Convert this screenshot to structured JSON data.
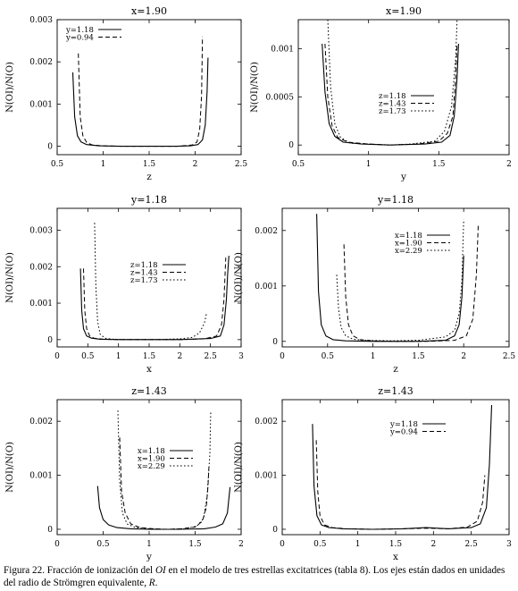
{
  "caption": {
    "before_oi": "Figura 22. Fracción de ionización del ",
    "oi": "OI",
    "middle": " en el modelo de tres estrellas excitatrices (tabla 8). Los ejes están dados en unidades del radio de Strömgren equivalente, ",
    "r": "R",
    "end": "."
  },
  "chart_data": [
    {
      "type": "line",
      "title": "x=1.90",
      "xlabel": "z",
      "ylabel": "N(OI)/N(O)",
      "xlim": [
        0.5,
        2.5
      ],
      "ylim": [
        -0.0002,
        0.003
      ],
      "xticks": [
        0.5,
        1,
        1.5,
        2,
        2.5
      ],
      "xtick_labels": [
        "0.5",
        "1",
        "1.5",
        "2",
        "2.5"
      ],
      "yticks": [
        0,
        0.001,
        0.002,
        0.003
      ],
      "ytick_labels": [
        "0",
        "0.001",
        "0.002",
        "0.003"
      ],
      "legend_position": "top-left",
      "series": [
        {
          "name": "y=1.18",
          "style": "solid",
          "x": [
            0.67,
            0.69,
            0.72,
            0.76,
            0.82,
            0.95,
            1.2,
            1.5,
            1.8,
            1.95,
            2.03,
            2.08,
            2.11,
            2.13,
            2.14
          ],
          "y": [
            0.00175,
            0.0007,
            0.00025,
            0.0001,
            4e-05,
            1e-05,
            0.0,
            0.0,
            0.0,
            1e-05,
            4e-05,
            0.00015,
            0.0005,
            0.0013,
            0.0021
          ]
        },
        {
          "name": "y=0.94",
          "style": "dashed",
          "x": [
            0.73,
            0.75,
            0.78,
            0.82,
            0.88,
            1.0,
            1.2,
            1.5,
            1.8,
            1.97,
            2.02,
            2.05,
            2.07,
            2.08
          ],
          "y": [
            0.0022,
            0.0007,
            0.00025,
            9e-05,
            3e-05,
            1e-05,
            0.0,
            0.0,
            0.0,
            3e-05,
            0.0001,
            0.0004,
            0.0012,
            0.0026
          ]
        }
      ]
    },
    {
      "type": "line",
      "title": "x=1.90",
      "xlabel": "y",
      "ylabel": "N(OI)/N(O)",
      "xlim": [
        0.5,
        2.0
      ],
      "ylim": [
        -0.0001,
        0.0013
      ],
      "xticks": [
        0.5,
        1,
        1.5,
        2
      ],
      "xtick_labels": [
        "0.5",
        "1",
        "1.5",
        "2"
      ],
      "yticks": [
        0,
        0.0005,
        0.001
      ],
      "ytick_labels": [
        "0",
        "0.0005",
        "0.001"
      ],
      "legend_position": "center",
      "series": [
        {
          "name": "z=1.18",
          "style": "solid",
          "x": [
            0.67,
            0.69,
            0.72,
            0.76,
            0.82,
            0.95,
            1.15,
            1.4,
            1.52,
            1.58,
            1.61,
            1.63,
            1.64
          ],
          "y": [
            0.00105,
            0.00055,
            0.00022,
            9e-05,
            3e-05,
            1e-05,
            0.0,
            1e-05,
            3e-05,
            0.0001,
            0.0003,
            0.0007,
            0.00105
          ]
        },
        {
          "name": "z=1.43",
          "style": "dashed",
          "x": [
            0.69,
            0.71,
            0.74,
            0.78,
            0.85,
            1.0,
            1.15,
            1.35,
            1.5,
            1.56,
            1.6,
            1.62,
            1.63
          ],
          "y": [
            0.00105,
            0.0005,
            0.0002,
            8e-05,
            3e-05,
            1e-05,
            0.0,
            1e-05,
            4e-05,
            0.00012,
            0.0003,
            0.0007,
            0.00105
          ]
        },
        {
          "name": "z=1.73",
          "style": "dotted",
          "x": [
            0.71,
            0.73,
            0.76,
            0.8,
            0.87,
            1.0,
            1.15,
            1.3,
            1.47,
            1.54,
            1.59,
            1.62,
            1.63
          ],
          "y": [
            0.0013,
            0.0006,
            0.00022,
            8e-05,
            2e-05,
            1e-05,
            0.0,
            1e-05,
            4e-05,
            0.00014,
            0.0004,
            0.0009,
            0.0013
          ]
        }
      ]
    },
    {
      "type": "line",
      "title": "y=1.18",
      "xlabel": "x",
      "ylabel": "N(OI)/N(O)",
      "xlim": [
        0,
        3
      ],
      "ylim": [
        -0.0002,
        0.0036
      ],
      "xticks": [
        0,
        0.5,
        1,
        1.5,
        2,
        2.5,
        3
      ],
      "xtick_labels": [
        "0",
        "0.5",
        "1",
        "1.5",
        "2",
        "2.5",
        "3"
      ],
      "yticks": [
        0,
        0.001,
        0.002,
        0.003
      ],
      "ytick_labels": [
        "0",
        "0.001",
        "0.002",
        "0.003"
      ],
      "legend_position": "center",
      "series": [
        {
          "name": "z=1.18",
          "style": "solid",
          "x": [
            0.38,
            0.4,
            0.43,
            0.48,
            0.56,
            0.7,
            1.0,
            1.5,
            2.0,
            2.5,
            2.66,
            2.72,
            2.76,
            2.78,
            2.8
          ],
          "y": [
            0.00195,
            0.0008,
            0.0003,
            0.0001,
            4e-05,
            1e-05,
            0.0,
            0.0,
            0.0,
            3e-05,
            0.0001,
            0.0004,
            0.0011,
            0.0018,
            0.0023
          ]
        },
        {
          "name": "z=1.43",
          "style": "dashed",
          "x": [
            0.43,
            0.45,
            0.48,
            0.53,
            0.6,
            0.75,
            1.0,
            1.5,
            2.0,
            2.4,
            2.6,
            2.68,
            2.72,
            2.75
          ],
          "y": [
            0.00195,
            0.0008,
            0.0003,
            0.0001,
            4e-05,
            1e-05,
            0.0,
            0.0,
            0.0,
            2e-05,
            0.0001,
            0.0004,
            0.0011,
            0.00225
          ]
        },
        {
          "name": "z=1.73",
          "style": "dotted",
          "x": [
            0.61,
            0.63,
            0.66,
            0.7,
            0.78,
            0.9,
            1.2,
            1.6,
            2.0,
            2.2,
            2.32,
            2.4,
            2.44
          ],
          "y": [
            0.0032,
            0.0015,
            0.0005,
            0.00015,
            4e-05,
            1e-05,
            0.0,
            0.0,
            2e-05,
            6e-05,
            0.00018,
            0.00045,
            0.00075
          ]
        }
      ]
    },
    {
      "type": "line",
      "title": "y=1.18",
      "xlabel": "z",
      "ylabel": "N(OI)/N(O)",
      "xlim": [
        0,
        2.5
      ],
      "ylim": [
        -0.0001,
        0.0024
      ],
      "xticks": [
        0,
        0.5,
        1,
        1.5,
        2,
        2.5
      ],
      "xtick_labels": [
        "0",
        "0.5",
        "1",
        "1.5",
        "2",
        "2.5"
      ],
      "yticks": [
        0,
        0.001,
        0.002
      ],
      "ytick_labels": [
        "0",
        "0.001",
        "0.002"
      ],
      "legend_position": "top-center",
      "series": [
        {
          "name": "x=1.18",
          "style": "solid",
          "x": [
            0.38,
            0.4,
            0.43,
            0.48,
            0.56,
            0.7,
            1.0,
            1.5,
            1.8,
            1.9,
            1.95,
            1.98,
            2.0
          ],
          "y": [
            0.0023,
            0.0009,
            0.0003,
            0.0001,
            3e-05,
            1e-05,
            0.0,
            0.0,
            2e-05,
            0.0001,
            0.0003,
            0.0008,
            0.00155
          ]
        },
        {
          "name": "x=1.90",
          "style": "dashed",
          "x": [
            0.68,
            0.7,
            0.73,
            0.78,
            0.86,
            1.0,
            1.3,
            1.6,
            1.9,
            2.03,
            2.1,
            2.14,
            2.16
          ],
          "y": [
            0.00175,
            0.0008,
            0.0003,
            0.0001,
            3e-05,
            1e-05,
            0.0,
            0.0,
            2e-05,
            0.0001,
            0.0004,
            0.0012,
            0.0021
          ]
        },
        {
          "name": "x=2.29",
          "style": "dotted",
          "x": [
            0.6,
            0.62,
            0.65,
            0.7,
            0.78,
            0.9,
            1.2,
            1.5,
            1.8,
            1.9,
            1.95,
            1.98,
            2.0
          ],
          "y": [
            0.0012,
            0.0006,
            0.00025,
            0.0001,
            4e-05,
            2e-05,
            1e-05,
            2e-05,
            8e-05,
            0.0002,
            0.0005,
            0.0011,
            0.0022
          ]
        }
      ]
    },
    {
      "type": "line",
      "title": "z=1.43",
      "xlabel": "y",
      "ylabel": "N(OI)/N(O)",
      "xlim": [
        0,
        2
      ],
      "ylim": [
        -0.0001,
        0.0024
      ],
      "xticks": [
        0,
        0.5,
        1,
        1.5,
        2
      ],
      "xtick_labels": [
        "0",
        "0.5",
        "1",
        "1.5",
        "2"
      ],
      "yticks": [
        0,
        0.001,
        0.002
      ],
      "ytick_labels": [
        "0",
        "0.001",
        "0.002"
      ],
      "legend_position": "center",
      "series": [
        {
          "name": "x=1.18",
          "style": "solid",
          "x": [
            0.44,
            0.46,
            0.5,
            0.56,
            0.65,
            0.8,
            1.0,
            1.3,
            1.6,
            1.72,
            1.8,
            1.85,
            1.88
          ],
          "y": [
            0.0008,
            0.0004,
            0.00018,
            8e-05,
            3e-05,
            1e-05,
            0.0,
            0.0,
            1e-05,
            4e-05,
            0.0001,
            0.0003,
            0.00078
          ]
        },
        {
          "name": "x=1.90",
          "style": "dashed",
          "x": [
            0.68,
            0.7,
            0.74,
            0.8,
            0.9,
            1.05,
            1.2,
            1.35,
            1.5,
            1.58,
            1.62,
            1.64,
            1.65
          ],
          "y": [
            0.0017,
            0.0007,
            0.0003,
            0.0001,
            3e-05,
            1e-05,
            0.0,
            1e-05,
            4e-05,
            0.00015,
            0.0004,
            0.0008,
            0.00115
          ]
        },
        {
          "name": "x=2.29",
          "style": "dotted",
          "x": [
            0.66,
            0.68,
            0.71,
            0.76,
            0.85,
            1.0,
            1.2,
            1.4,
            1.52,
            1.59,
            1.63,
            1.66,
            1.67
          ],
          "y": [
            0.0022,
            0.0009,
            0.0003,
            0.0001,
            3e-05,
            1e-05,
            0.0,
            1e-05,
            6e-05,
            0.0002,
            0.0006,
            0.0014,
            0.0022
          ]
        }
      ]
    },
    {
      "type": "line",
      "title": "z=1.43",
      "xlabel": "x",
      "ylabel": "N(OI)/N(O)",
      "xlim": [
        0,
        3
      ],
      "ylim": [
        -0.0001,
        0.0024
      ],
      "xticks": [
        0,
        0.5,
        1,
        1.5,
        2,
        2.5,
        3
      ],
      "xtick_labels": [
        "0",
        "0.5",
        "1",
        "1.5",
        "2",
        "2.5",
        "3"
      ],
      "yticks": [
        0,
        0.001,
        0.002
      ],
      "ytick_labels": [
        "0",
        "0.001",
        "0.002"
      ],
      "legend_position": "top-center",
      "series": [
        {
          "name": "y=1.18",
          "style": "solid",
          "x": [
            0.4,
            0.42,
            0.46,
            0.52,
            0.62,
            0.8,
            1.2,
            1.6,
            1.9,
            2.2,
            2.5,
            2.62,
            2.7,
            2.74,
            2.77
          ],
          "y": [
            0.00195,
            0.0008,
            0.00025,
            8e-05,
            3e-05,
            1e-05,
            0.0,
            1e-05,
            3e-05,
            1e-05,
            3e-05,
            0.0001,
            0.0004,
            0.0012,
            0.0023
          ]
        },
        {
          "name": "y=0.94",
          "style": "dashed",
          "x": [
            0.45,
            0.47,
            0.5,
            0.56,
            0.66,
            0.85,
            1.2,
            1.6,
            1.9,
            2.2,
            2.45,
            2.58,
            2.65,
            2.68
          ],
          "y": [
            0.00165,
            0.0007,
            0.00025,
            8e-05,
            3e-05,
            1e-05,
            0.0,
            1e-05,
            2e-05,
            1e-05,
            4e-05,
            0.00015,
            0.0005,
            0.001
          ]
        }
      ]
    }
  ]
}
